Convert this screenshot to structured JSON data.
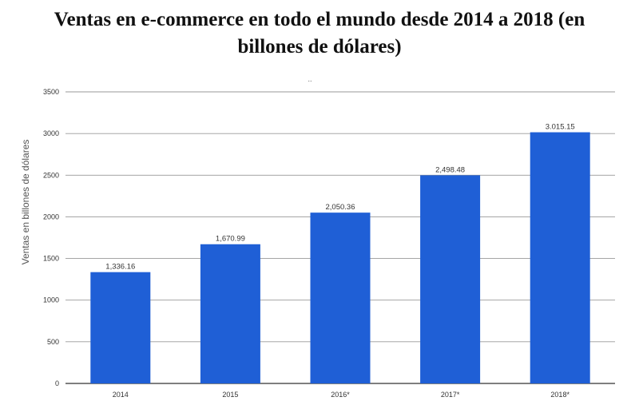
{
  "chart_data": {
    "type": "bar",
    "title_line1": "Ventas en e-commerce en todo el mundo desde 2014 a 2018 (en",
    "title_line2": "billones de dólares)",
    "top_marker": "..",
    "ylabel": "Ventas en billones de dólares",
    "xlabel": "",
    "categories": [
      "2014",
      "2015",
      "2016*",
      "2017*",
      "2018*"
    ],
    "values": [
      1336.16,
      1670.99,
      2050.36,
      2498.48,
      3015.15
    ],
    "value_labels": [
      "1,336.16",
      "1,670.99",
      "2,050.36",
      "2,498.48",
      "3.015.15"
    ],
    "ylim": [
      0,
      3500
    ],
    "yticks": [
      0,
      500,
      1000,
      1500,
      2000,
      2500,
      3000,
      3500
    ],
    "grid": true,
    "legend": "none",
    "bar_color": "#1f5fd6",
    "grid_color": "#999999"
  }
}
